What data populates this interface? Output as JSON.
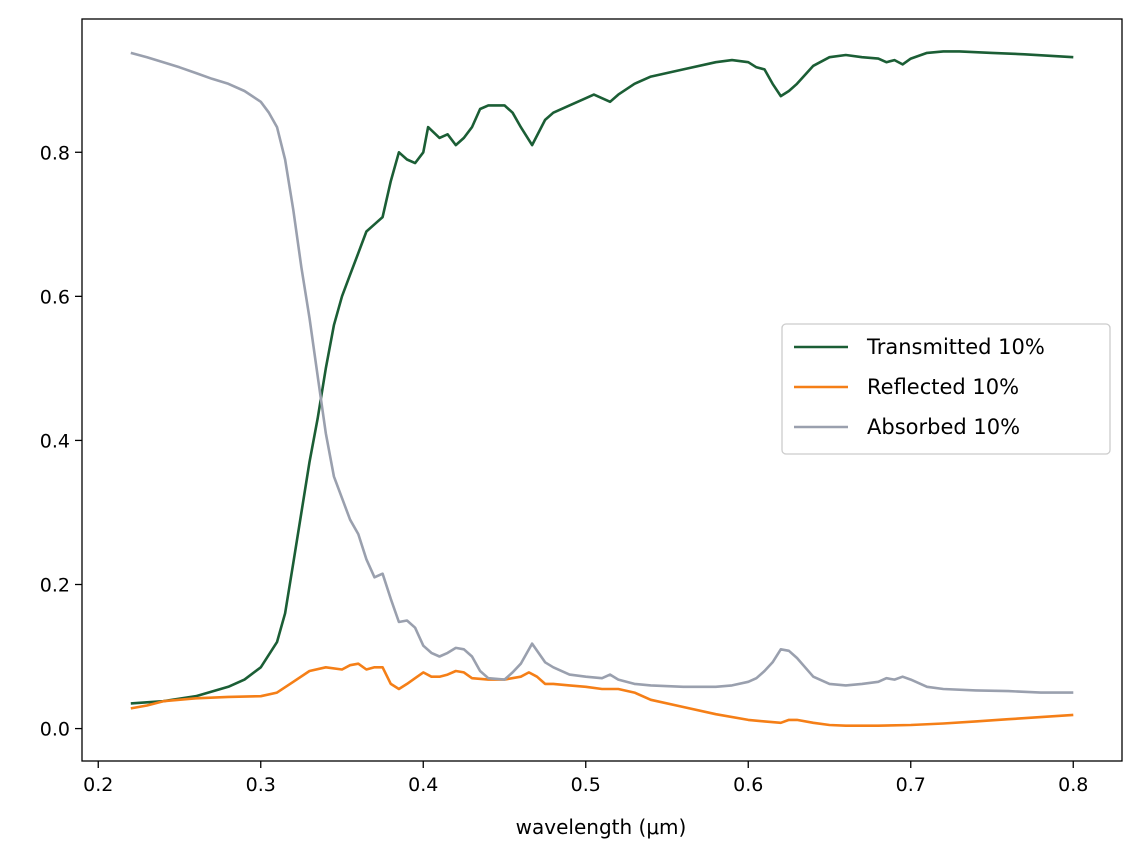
{
  "chart_data": {
    "type": "line",
    "title": "",
    "xlabel": "wavelength (μm)",
    "ylabel": "",
    "xlim": [
      0.19,
      0.83
    ],
    "ylim": [
      -0.045,
      0.985
    ],
    "x_ticks": [
      0.2,
      0.3,
      0.4,
      0.5,
      0.6,
      0.7,
      0.8
    ],
    "x_tick_labels": [
      "0.2",
      "0.3",
      "0.4",
      "0.5",
      "0.6",
      "0.7",
      "0.8"
    ],
    "y_ticks": [
      0.0,
      0.2,
      0.4,
      0.6,
      0.8
    ],
    "y_tick_labels": [
      "0.0",
      "0.2",
      "0.4",
      "0.6",
      "0.8"
    ],
    "grid": false,
    "legend_position": "right",
    "series": [
      {
        "name": "Transmitted 10%",
        "color": "#1b5e35",
        "points": [
          [
            0.22,
            0.035
          ],
          [
            0.24,
            0.038
          ],
          [
            0.26,
            0.045
          ],
          [
            0.28,
            0.058
          ],
          [
            0.29,
            0.068
          ],
          [
            0.3,
            0.085
          ],
          [
            0.31,
            0.12
          ],
          [
            0.315,
            0.16
          ],
          [
            0.32,
            0.23
          ],
          [
            0.325,
            0.3
          ],
          [
            0.33,
            0.37
          ],
          [
            0.335,
            0.43
          ],
          [
            0.34,
            0.5
          ],
          [
            0.345,
            0.56
          ],
          [
            0.35,
            0.6
          ],
          [
            0.355,
            0.63
          ],
          [
            0.36,
            0.66
          ],
          [
            0.365,
            0.69
          ],
          [
            0.37,
            0.7
          ],
          [
            0.375,
            0.71
          ],
          [
            0.38,
            0.76
          ],
          [
            0.385,
            0.8
          ],
          [
            0.39,
            0.79
          ],
          [
            0.395,
            0.785
          ],
          [
            0.4,
            0.8
          ],
          [
            0.403,
            0.835
          ],
          [
            0.41,
            0.82
          ],
          [
            0.415,
            0.825
          ],
          [
            0.42,
            0.81
          ],
          [
            0.425,
            0.82
          ],
          [
            0.43,
            0.835
          ],
          [
            0.435,
            0.86
          ],
          [
            0.44,
            0.865
          ],
          [
            0.45,
            0.865
          ],
          [
            0.455,
            0.855
          ],
          [
            0.46,
            0.835
          ],
          [
            0.467,
            0.81
          ],
          [
            0.475,
            0.845
          ],
          [
            0.48,
            0.855
          ],
          [
            0.49,
            0.865
          ],
          [
            0.5,
            0.875
          ],
          [
            0.505,
            0.88
          ],
          [
            0.51,
            0.875
          ],
          [
            0.515,
            0.87
          ],
          [
            0.52,
            0.88
          ],
          [
            0.53,
            0.895
          ],
          [
            0.54,
            0.905
          ],
          [
            0.56,
            0.915
          ],
          [
            0.58,
            0.925
          ],
          [
            0.59,
            0.928
          ],
          [
            0.6,
            0.925
          ],
          [
            0.605,
            0.918
          ],
          [
            0.61,
            0.915
          ],
          [
            0.615,
            0.895
          ],
          [
            0.62,
            0.878
          ],
          [
            0.625,
            0.885
          ],
          [
            0.63,
            0.895
          ],
          [
            0.64,
            0.92
          ],
          [
            0.65,
            0.932
          ],
          [
            0.66,
            0.935
          ],
          [
            0.67,
            0.932
          ],
          [
            0.68,
            0.93
          ],
          [
            0.685,
            0.925
          ],
          [
            0.69,
            0.928
          ],
          [
            0.695,
            0.922
          ],
          [
            0.7,
            0.93
          ],
          [
            0.71,
            0.938
          ],
          [
            0.72,
            0.94
          ],
          [
            0.73,
            0.94
          ],
          [
            0.75,
            0.938
          ],
          [
            0.77,
            0.936
          ],
          [
            0.8,
            0.932
          ]
        ]
      },
      {
        "name": "Reflected 10%",
        "color": "#f57f17",
        "points": [
          [
            0.22,
            0.028
          ],
          [
            0.23,
            0.032
          ],
          [
            0.24,
            0.038
          ],
          [
            0.26,
            0.042
          ],
          [
            0.28,
            0.044
          ],
          [
            0.3,
            0.045
          ],
          [
            0.31,
            0.05
          ],
          [
            0.32,
            0.065
          ],
          [
            0.33,
            0.08
          ],
          [
            0.34,
            0.085
          ],
          [
            0.35,
            0.082
          ],
          [
            0.355,
            0.088
          ],
          [
            0.36,
            0.09
          ],
          [
            0.365,
            0.082
          ],
          [
            0.37,
            0.085
          ],
          [
            0.375,
            0.085
          ],
          [
            0.38,
            0.062
          ],
          [
            0.385,
            0.055
          ],
          [
            0.39,
            0.062
          ],
          [
            0.395,
            0.07
          ],
          [
            0.4,
            0.078
          ],
          [
            0.405,
            0.072
          ],
          [
            0.41,
            0.072
          ],
          [
            0.415,
            0.075
          ],
          [
            0.42,
            0.08
          ],
          [
            0.425,
            0.078
          ],
          [
            0.43,
            0.07
          ],
          [
            0.44,
            0.068
          ],
          [
            0.45,
            0.068
          ],
          [
            0.46,
            0.072
          ],
          [
            0.465,
            0.078
          ],
          [
            0.47,
            0.072
          ],
          [
            0.475,
            0.062
          ],
          [
            0.48,
            0.062
          ],
          [
            0.49,
            0.06
          ],
          [
            0.5,
            0.058
          ],
          [
            0.51,
            0.055
          ],
          [
            0.52,
            0.055
          ],
          [
            0.53,
            0.05
          ],
          [
            0.54,
            0.04
          ],
          [
            0.56,
            0.03
          ],
          [
            0.58,
            0.02
          ],
          [
            0.6,
            0.012
          ],
          [
            0.61,
            0.01
          ],
          [
            0.62,
            0.008
          ],
          [
            0.625,
            0.012
          ],
          [
            0.63,
            0.012
          ],
          [
            0.64,
            0.008
          ],
          [
            0.65,
            0.005
          ],
          [
            0.66,
            0.004
          ],
          [
            0.68,
            0.004
          ],
          [
            0.7,
            0.005
          ],
          [
            0.72,
            0.007
          ],
          [
            0.74,
            0.01
          ],
          [
            0.76,
            0.013
          ],
          [
            0.78,
            0.016
          ],
          [
            0.8,
            0.019
          ]
        ]
      },
      {
        "name": "Absorbed 10%",
        "color": "#9aa0ae",
        "points": [
          [
            0.22,
            0.938
          ],
          [
            0.23,
            0.932
          ],
          [
            0.24,
            0.925
          ],
          [
            0.25,
            0.918
          ],
          [
            0.26,
            0.91
          ],
          [
            0.27,
            0.902
          ],
          [
            0.28,
            0.895
          ],
          [
            0.29,
            0.885
          ],
          [
            0.3,
            0.87
          ],
          [
            0.305,
            0.855
          ],
          [
            0.31,
            0.835
          ],
          [
            0.315,
            0.79
          ],
          [
            0.32,
            0.72
          ],
          [
            0.325,
            0.64
          ],
          [
            0.33,
            0.57
          ],
          [
            0.335,
            0.49
          ],
          [
            0.34,
            0.41
          ],
          [
            0.345,
            0.35
          ],
          [
            0.35,
            0.32
          ],
          [
            0.355,
            0.29
          ],
          [
            0.36,
            0.27
          ],
          [
            0.365,
            0.235
          ],
          [
            0.37,
            0.21
          ],
          [
            0.375,
            0.215
          ],
          [
            0.38,
            0.18
          ],
          [
            0.385,
            0.148
          ],
          [
            0.39,
            0.15
          ],
          [
            0.395,
            0.14
          ],
          [
            0.4,
            0.115
          ],
          [
            0.405,
            0.105
          ],
          [
            0.41,
            0.1
          ],
          [
            0.415,
            0.105
          ],
          [
            0.42,
            0.112
          ],
          [
            0.425,
            0.11
          ],
          [
            0.43,
            0.1
          ],
          [
            0.435,
            0.08
          ],
          [
            0.44,
            0.07
          ],
          [
            0.45,
            0.068
          ],
          [
            0.455,
            0.078
          ],
          [
            0.46,
            0.09
          ],
          [
            0.467,
            0.118
          ],
          [
            0.475,
            0.092
          ],
          [
            0.48,
            0.085
          ],
          [
            0.49,
            0.075
          ],
          [
            0.5,
            0.072
          ],
          [
            0.51,
            0.07
          ],
          [
            0.515,
            0.075
          ],
          [
            0.52,
            0.068
          ],
          [
            0.53,
            0.062
          ],
          [
            0.54,
            0.06
          ],
          [
            0.56,
            0.058
          ],
          [
            0.58,
            0.058
          ],
          [
            0.59,
            0.06
          ],
          [
            0.6,
            0.065
          ],
          [
            0.605,
            0.07
          ],
          [
            0.61,
            0.08
          ],
          [
            0.615,
            0.092
          ],
          [
            0.62,
            0.11
          ],
          [
            0.625,
            0.108
          ],
          [
            0.63,
            0.098
          ],
          [
            0.635,
            0.085
          ],
          [
            0.64,
            0.072
          ],
          [
            0.65,
            0.062
          ],
          [
            0.66,
            0.06
          ],
          [
            0.67,
            0.062
          ],
          [
            0.68,
            0.065
          ],
          [
            0.685,
            0.07
          ],
          [
            0.69,
            0.068
          ],
          [
            0.695,
            0.072
          ],
          [
            0.7,
            0.068
          ],
          [
            0.71,
            0.058
          ],
          [
            0.72,
            0.055
          ],
          [
            0.74,
            0.053
          ],
          [
            0.76,
            0.052
          ],
          [
            0.78,
            0.05
          ],
          [
            0.8,
            0.05
          ]
        ]
      }
    ]
  }
}
